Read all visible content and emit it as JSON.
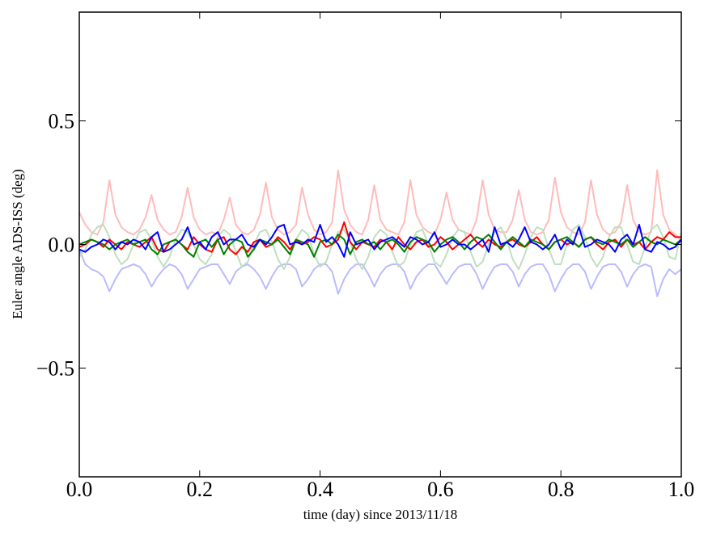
{
  "chart_data": {
    "type": "line",
    "xlabel": "time (day) since 2013/11/18",
    "ylabel": "Euler angle ADS-ISS (deg)",
    "xlim": [
      0,
      1
    ],
    "ylim": [
      -0.94,
      0.94
    ],
    "xticks": [
      {
        "value": 0,
        "label": "0.0"
      },
      0.2,
      0.4,
      0.6,
      0.8,
      {
        "value": 1,
        "label": "1.0"
      }
    ],
    "yticks": [
      {
        "value": -0.5,
        "label": "−0.5"
      },
      {
        "value": 0,
        "label": "0.0"
      },
      0.5
    ],
    "grid": false,
    "x": [
      0,
      0.01,
      0.02,
      0.03,
      0.04,
      0.05,
      0.06,
      0.07,
      0.08,
      0.09,
      0.1,
      0.11,
      0.12,
      0.13,
      0.14,
      0.15,
      0.16,
      0.17,
      0.18,
      0.19,
      0.2,
      0.21,
      0.22,
      0.23,
      0.24,
      0.25,
      0.26,
      0.27,
      0.28,
      0.29,
      0.3,
      0.31,
      0.32,
      0.33,
      0.34,
      0.35,
      0.36,
      0.37,
      0.38,
      0.39,
      0.4,
      0.41,
      0.42,
      0.43,
      0.44,
      0.45,
      0.46,
      0.47,
      0.48,
      0.49,
      0.5,
      0.51,
      0.52,
      0.53,
      0.54,
      0.55,
      0.56,
      0.57,
      0.58,
      0.59,
      0.6,
      0.61,
      0.62,
      0.63,
      0.64,
      0.65,
      0.66,
      0.67,
      0.68,
      0.69,
      0.7,
      0.71,
      0.72,
      0.73,
      0.74,
      0.75,
      0.76,
      0.77,
      0.78,
      0.79,
      0.8,
      0.81,
      0.82,
      0.83,
      0.84,
      0.85,
      0.86,
      0.87,
      0.88,
      0.89,
      0.9,
      0.91,
      0.92,
      0.93,
      0.94,
      0.95,
      0.96,
      0.97,
      0.98,
      0.99,
      1
    ],
    "series": [
      {
        "color": "#ffbbbb",
        "values": [
          0.13,
          0.08,
          0.05,
          0.04,
          0.09,
          0.26,
          0.12,
          0.07,
          0.05,
          0.04,
          0.06,
          0.11,
          0.2,
          0.1,
          0.06,
          0.04,
          0.05,
          0.11,
          0.23,
          0.11,
          0.06,
          0.04,
          0.05,
          0.04,
          0.1,
          0.19,
          0.08,
          0.05,
          0.04,
          0.06,
          0.12,
          0.25,
          0.11,
          0.06,
          0.04,
          0.05,
          0.08,
          0.23,
          0.12,
          0.06,
          0.04,
          0.05,
          0.09,
          0.3,
          0.14,
          0.08,
          0.05,
          0.04,
          0.1,
          0.24,
          0.1,
          0.06,
          0.05,
          0.04,
          0.09,
          0.26,
          0.12,
          0.07,
          0.05,
          0.04,
          0.1,
          0.21,
          0.1,
          0.06,
          0.05,
          0.04,
          0.1,
          0.26,
          0.12,
          0.06,
          0.05,
          0.05,
          0.1,
          0.22,
          0.1,
          0.05,
          0.04,
          0.05,
          0.1,
          0.27,
          0.13,
          0.07,
          0.05,
          0.04,
          0.09,
          0.26,
          0.12,
          0.06,
          0.04,
          0.05,
          0.09,
          0.24,
          0.1,
          0.05,
          0.04,
          0.05,
          0.3,
          0.12,
          0.06,
          0.04,
          0.02
        ]
      },
      {
        "color": "#bbbbff",
        "values": [
          -0.02,
          -0.08,
          -0.1,
          -0.11,
          -0.13,
          -0.19,
          -0.14,
          -0.1,
          -0.09,
          -0.08,
          -0.09,
          -0.12,
          -0.17,
          -0.13,
          -0.1,
          -0.08,
          -0.09,
          -0.12,
          -0.18,
          -0.14,
          -0.1,
          -0.09,
          -0.08,
          -0.08,
          -0.12,
          -0.16,
          -0.11,
          -0.09,
          -0.08,
          -0.1,
          -0.13,
          -0.18,
          -0.13,
          -0.09,
          -0.08,
          -0.08,
          -0.1,
          -0.17,
          -0.14,
          -0.1,
          -0.08,
          -0.08,
          -0.11,
          -0.2,
          -0.14,
          -0.1,
          -0.08,
          -0.08,
          -0.12,
          -0.17,
          -0.12,
          -0.09,
          -0.08,
          -0.08,
          -0.11,
          -0.18,
          -0.13,
          -0.1,
          -0.08,
          -0.08,
          -0.12,
          -0.16,
          -0.12,
          -0.09,
          -0.08,
          -0.08,
          -0.12,
          -0.18,
          -0.13,
          -0.09,
          -0.08,
          -0.08,
          -0.11,
          -0.17,
          -0.12,
          -0.09,
          -0.08,
          -0.08,
          -0.12,
          -0.19,
          -0.14,
          -0.1,
          -0.08,
          -0.08,
          -0.11,
          -0.18,
          -0.13,
          -0.09,
          -0.08,
          -0.08,
          -0.11,
          -0.17,
          -0.12,
          -0.09,
          -0.08,
          -0.09,
          -0.21,
          -0.14,
          -0.1,
          -0.12,
          -0.1
        ]
      },
      {
        "color": "#bfdfbf",
        "values": [
          -0.05,
          -0.02,
          0.04,
          0.07,
          0.08,
          0.03,
          -0.04,
          -0.08,
          -0.06,
          0.0,
          0.05,
          0.06,
          0.02,
          -0.05,
          -0.09,
          -0.05,
          0.02,
          0.06,
          0.05,
          0.0,
          -0.06,
          -0.08,
          -0.04,
          0.03,
          0.06,
          0.04,
          -0.03,
          -0.09,
          -0.07,
          0.0,
          0.05,
          0.06,
          0.01,
          -0.06,
          -0.1,
          -0.05,
          0.02,
          0.06,
          0.04,
          -0.04,
          -0.09,
          -0.07,
          0.0,
          0.05,
          0.06,
          0.01,
          -0.06,
          -0.1,
          -0.05,
          0.03,
          0.06,
          0.04,
          -0.03,
          -0.09,
          -0.07,
          0.0,
          0.05,
          0.06,
          0.0,
          -0.07,
          -0.09,
          -0.04,
          0.03,
          0.06,
          0.05,
          -0.03,
          -0.09,
          -0.07,
          0.0,
          0.05,
          0.07,
          0.02,
          -0.06,
          -0.1,
          -0.04,
          0.03,
          0.07,
          0.06,
          -0.02,
          -0.08,
          -0.08,
          0.0,
          0.06,
          0.08,
          0.03,
          -0.05,
          -0.09,
          -0.05,
          0.03,
          0.07,
          0.07,
          0.0,
          -0.07,
          -0.08,
          -0.01,
          0.06,
          0.08,
          0.03,
          -0.05,
          -0.06,
          0.05
        ]
      },
      {
        "color": "#ff0000",
        "values": [
          -0.01,
          0.0,
          0.02,
          0.01,
          -0.01,
          0.02,
          0.0,
          -0.02,
          0.01,
          0.0,
          -0.01,
          0.01,
          0.03,
          -0.02,
          -0.03,
          0.01,
          0.02,
          0.0,
          -0.02,
          0.03,
          0.0,
          -0.02,
          -0.03,
          0.02,
          0.03,
          -0.02,
          -0.04,
          -0.01,
          -0.03,
          0.01,
          0.02,
          -0.01,
          0.0,
          0.03,
          0.01,
          -0.02,
          0.02,
          0.0,
          0.01,
          0.03,
          0.02,
          -0.01,
          0.0,
          0.02,
          0.09,
          0.01,
          -0.02,
          0.01,
          0.0,
          -0.01,
          0.02,
          0.01,
          -0.02,
          0.03,
          0.0,
          -0.02,
          0.01,
          0.02,
          -0.01,
          0.0,
          0.03,
          0.01,
          -0.02,
          0.0,
          0.02,
          0.04,
          0.01,
          -0.01,
          0.02,
          0.0,
          -0.01,
          0.01,
          0.02,
          0.0,
          -0.01,
          0.01,
          0.03,
          0.0,
          -0.02,
          0.01,
          0.02,
          0.0,
          0.01,
          -0.01,
          0.02,
          0.03,
          0.0,
          -0.02,
          0.01,
          0.02,
          -0.01,
          0.02,
          0.0,
          0.01,
          -0.02,
          0.01,
          0.03,
          0.02,
          0.05,
          0.03,
          0.03
        ]
      },
      {
        "color": "#008000",
        "values": [
          0.0,
          0.01,
          0.02,
          0.01,
          0.0,
          -0.02,
          0.0,
          0.01,
          0.02,
          0.0,
          0.01,
          0.02,
          -0.02,
          -0.04,
          0.0,
          0.01,
          0.02,
          0.0,
          -0.03,
          -0.05,
          0.01,
          0.02,
          -0.01,
          0.02,
          -0.04,
          0.0,
          0.02,
          0.01,
          -0.05,
          -0.02,
          0.02,
          0.01,
          0.0,
          0.02,
          -0.01,
          -0.04,
          0.02,
          0.01,
          0.0,
          -0.05,
          0.01,
          0.02,
          0.0,
          0.04,
          0.02,
          -0.04,
          0.01,
          0.02,
          0.0,
          0.01,
          -0.02,
          0.01,
          0.02,
          0.0,
          -0.03,
          0.01,
          0.03,
          0.02,
          0.01,
          -0.03,
          0.0,
          0.02,
          0.03,
          0.01,
          -0.02,
          0.01,
          0.03,
          0.02,
          0.04,
          0.01,
          -0.02,
          0.01,
          0.03,
          0.01,
          -0.01,
          0.02,
          0.01,
          0.0,
          -0.02,
          0.01,
          0.02,
          0.03,
          0.01,
          -0.01,
          0.02,
          0.03,
          0.01,
          0.0,
          0.02,
          0.01,
          0.0,
          0.02,
          -0.01,
          0.01,
          0.03,
          0.01,
          0.0,
          0.02,
          0.01,
          0.0,
          0.02
        ]
      },
      {
        "color": "#0000ff",
        "values": [
          -0.02,
          -0.03,
          -0.01,
          0.0,
          0.02,
          0.01,
          -0.02,
          0.01,
          0.0,
          0.02,
          0.01,
          -0.02,
          0.03,
          0.05,
          -0.03,
          -0.02,
          0.0,
          0.02,
          0.07,
          0.0,
          0.01,
          -0.02,
          0.03,
          0.05,
          0.0,
          0.02,
          0.02,
          0.04,
          0.0,
          -0.01,
          0.02,
          0.0,
          0.03,
          0.07,
          0.08,
          0.0,
          0.01,
          0.0,
          0.02,
          0.01,
          0.08,
          0.01,
          0.03,
          0.0,
          -0.05,
          0.05,
          0.0,
          0.01,
          0.02,
          -0.02,
          0.01,
          0.02,
          0.03,
          0.01,
          -0.01,
          0.03,
          0.02,
          0.0,
          0.01,
          0.05,
          -0.01,
          0.0,
          0.02,
          0.0,
          0.0,
          -0.02,
          0.0,
          0.02,
          -0.03,
          0.07,
          0.0,
          0.01,
          -0.01,
          0.02,
          0.07,
          0.01,
          0.0,
          -0.02,
          0.0,
          0.04,
          -0.02,
          0.02,
          0.0,
          0.07,
          -0.01,
          0.0,
          0.02,
          0.01,
          0.0,
          -0.03,
          0.02,
          0.04,
          0.0,
          0.08,
          -0.02,
          -0.03,
          0.01,
          0.0,
          -0.02,
          -0.01,
          0.02
        ]
      }
    ]
  }
}
